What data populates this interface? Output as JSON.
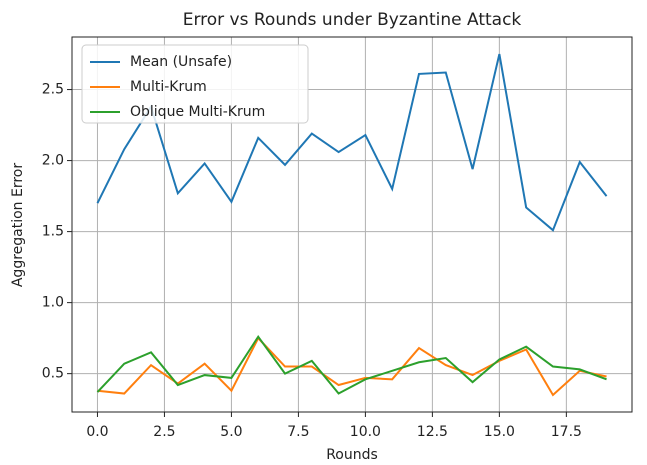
{
  "chart_data": {
    "type": "line",
    "title": "Error vs Rounds under Byzantine Attack",
    "x_label": "Rounds",
    "y_label": "Aggregation Error",
    "x": [
      0,
      1,
      2,
      3,
      4,
      5,
      6,
      7,
      8,
      9,
      10,
      11,
      12,
      13,
      14,
      15,
      16,
      17,
      18,
      19
    ],
    "series": [
      {
        "name": "Mean (Unsafe)",
        "color": "#1f77b4",
        "values": [
          1.7,
          2.08,
          2.38,
          1.77,
          1.98,
          1.71,
          2.16,
          1.97,
          2.19,
          2.06,
          2.18,
          1.8,
          2.61,
          2.62,
          1.94,
          2.75,
          1.67,
          1.51,
          1.99,
          1.75
        ]
      },
      {
        "name": "Multi-Krum",
        "color": "#ff7f0e",
        "values": [
          0.38,
          0.36,
          0.56,
          0.43,
          0.57,
          0.38,
          0.75,
          0.55,
          0.55,
          0.42,
          0.47,
          0.46,
          0.68,
          0.56,
          0.49,
          0.59,
          0.67,
          0.35,
          0.52,
          0.48
        ]
      },
      {
        "name": "Oblique Multi-Krum",
        "color": "#2ca02c",
        "values": [
          0.37,
          0.57,
          0.65,
          0.42,
          0.49,
          0.47,
          0.76,
          0.5,
          0.59,
          0.36,
          0.46,
          0.52,
          0.58,
          0.61,
          0.44,
          0.6,
          0.69,
          0.55,
          0.53,
          0.46
        ]
      }
    ],
    "xlim": [
      -0.95,
      19.95
    ],
    "xticks": [
      {
        "value": 0,
        "label": "0.0"
      },
      2.5,
      {
        "value": 5,
        "label": "5.0"
      },
      7.5,
      {
        "value": 10,
        "label": "10.0"
      },
      12.5,
      {
        "value": 15,
        "label": "15.0"
      },
      17.5
    ],
    "ylim": [
      0.23,
      2.87
    ],
    "yticks": [
      0.5,
      {
        "value": 1,
        "label": "1.0"
      },
      1.5,
      {
        "value": 2,
        "label": "2.0"
      },
      2.5
    ],
    "grid": true,
    "legend": "upper left"
  }
}
